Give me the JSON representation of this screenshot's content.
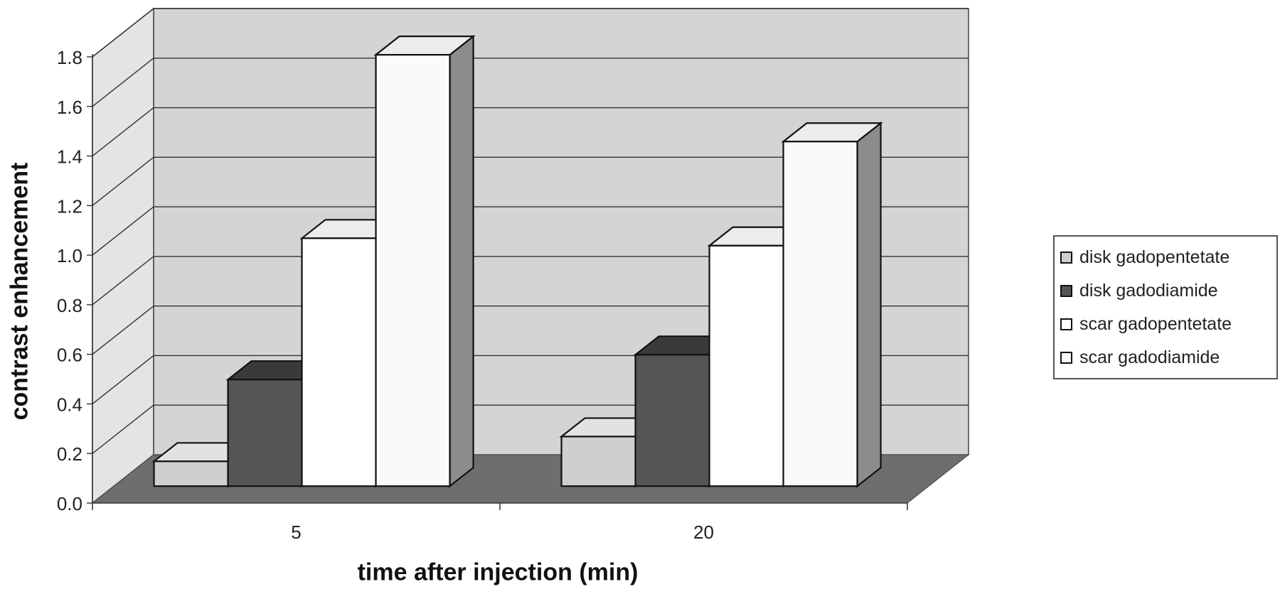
{
  "chart_data": {
    "type": "bar",
    "categories": [
      "5",
      "20"
    ],
    "series": [
      {
        "name": "disk gadopentetate",
        "values": [
          0.1,
          0.2
        ],
        "color": "#cfcfcf"
      },
      {
        "name": "disk gadodiamide",
        "values": [
          0.43,
          0.53
        ],
        "color": "#555555"
      },
      {
        "name": "scar gadopentetate",
        "values": [
          1.0,
          0.97
        ],
        "color": "#ffffff"
      },
      {
        "name": "scar  gadodiamide",
        "values": [
          1.74,
          1.39
        ],
        "color": "#fafafa"
      }
    ],
    "xlabel": "time after injection (min)",
    "ylabel": "contrast enhancement",
    "ylim": [
      0,
      1.8
    ],
    "yticks": [
      "0.0",
      "0.2",
      "0.4",
      "0.6",
      "0.8",
      "1.0",
      "1.2",
      "1.4",
      "1.6",
      "1.8"
    ],
    "grid": true,
    "legend_position": "right"
  }
}
